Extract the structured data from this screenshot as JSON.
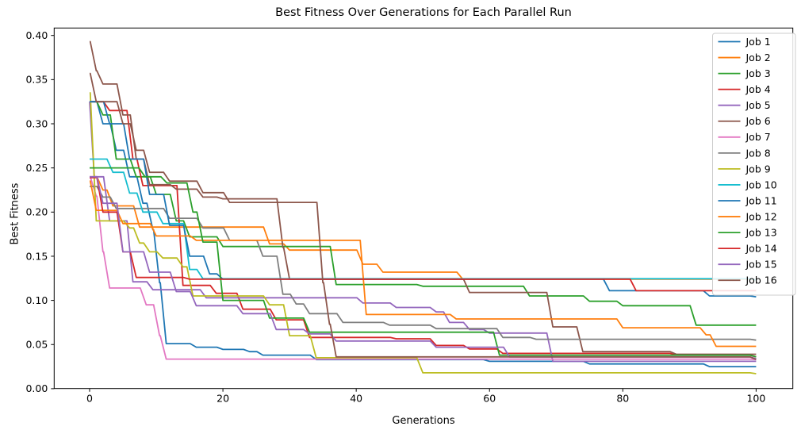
{
  "figure": {
    "title": "Best Fitness Over Generations for Each Parallel Run",
    "xlabel": "Generations",
    "ylabel": "Best Fitness"
  },
  "axes": {
    "x_ticks": [
      0,
      20,
      40,
      60,
      80,
      100
    ],
    "y_ticks": [
      "0.00",
      "0.05",
      "0.10",
      "0.15",
      "0.20",
      "0.25",
      "0.30",
      "0.35",
      "0.40"
    ],
    "background": "#ffffff",
    "spine_color": "#000000"
  },
  "chart_data": {
    "type": "line",
    "title": "Best Fitness Over Generations for Each Parallel Run",
    "xlabel": "Generations",
    "ylabel": "Best Fitness",
    "xlim": [
      -5,
      105
    ],
    "ylim": [
      0.0,
      0.41
    ],
    "grid": false,
    "legend_position": "upper right",
    "line_style": "step-decreasing",
    "series": [
      {
        "name": "Job 1",
        "color": "#1f77b4",
        "points": [
          [
            0,
            0.325
          ],
          [
            2,
            0.3
          ],
          [
            4,
            0.27
          ],
          [
            6,
            0.24
          ],
          [
            8,
            0.21
          ],
          [
            9.5,
            0.18
          ],
          [
            10.5,
            0.12
          ],
          [
            11.5,
            0.051
          ],
          [
            16,
            0.047
          ],
          [
            20,
            0.0445
          ],
          [
            24,
            0.042
          ],
          [
            26,
            0.038
          ],
          [
            34,
            0.033
          ],
          [
            60,
            0.031
          ],
          [
            75,
            0.028
          ],
          [
            93,
            0.025
          ],
          [
            100,
            0.025
          ]
        ]
      },
      {
        "name": "Job 2",
        "color": "#ff7f0e",
        "points": [
          [
            0,
            0.24
          ],
          [
            2,
            0.225
          ],
          [
            3.5,
            0.207
          ],
          [
            7.5,
            0.183
          ],
          [
            27,
            0.164
          ],
          [
            30,
            0.157
          ],
          [
            41,
            0.141
          ],
          [
            44,
            0.132
          ],
          [
            56,
            0.124
          ],
          [
            100,
            0.123
          ]
        ]
      },
      {
        "name": "Job 3",
        "color": "#2ca02c",
        "points": [
          [
            0,
            0.325
          ],
          [
            2,
            0.31
          ],
          [
            4,
            0.26
          ],
          [
            7,
            0.24
          ],
          [
            10,
            0.22
          ],
          [
            13,
            0.19
          ],
          [
            15,
            0.172
          ],
          [
            20,
            0.161
          ],
          [
            37,
            0.118
          ],
          [
            50,
            0.116
          ],
          [
            66,
            0.105
          ],
          [
            75,
            0.099
          ],
          [
            80,
            0.094
          ],
          [
            91,
            0.072
          ],
          [
            100,
            0.072
          ]
        ]
      },
      {
        "name": "Job 4",
        "color": "#d62728",
        "points": [
          [
            0,
            0.325
          ],
          [
            3,
            0.315
          ],
          [
            6.5,
            0.26
          ],
          [
            8,
            0.23
          ],
          [
            14,
            0.117
          ],
          [
            19,
            0.108
          ],
          [
            23,
            0.09
          ],
          [
            28,
            0.078
          ],
          [
            33,
            0.058
          ],
          [
            46,
            0.0565
          ],
          [
            52,
            0.049
          ],
          [
            57,
            0.045
          ],
          [
            62,
            0.04
          ],
          [
            88,
            0.038
          ],
          [
            100,
            0.036
          ]
        ]
      },
      {
        "name": "Job 5",
        "color": "#9467bd",
        "points": [
          [
            0,
            0.325
          ],
          [
            0.7,
            0.24
          ],
          [
            3,
            0.19
          ],
          [
            6.5,
            0.121
          ],
          [
            9.5,
            0.112
          ],
          [
            17.5,
            0.103
          ],
          [
            41,
            0.097
          ],
          [
            46,
            0.092
          ],
          [
            52,
            0.087
          ],
          [
            54,
            0.075
          ],
          [
            57,
            0.067
          ],
          [
            60,
            0.063
          ],
          [
            69.5,
            0.031
          ],
          [
            100,
            0.031
          ]
        ]
      },
      {
        "name": "Job 6",
        "color": "#8c564b",
        "points": [
          [
            0,
            0.393
          ],
          [
            1,
            0.36
          ],
          [
            2,
            0.345
          ],
          [
            5,
            0.31
          ],
          [
            7,
            0.26
          ],
          [
            9,
            0.231
          ],
          [
            13,
            0.226
          ],
          [
            17,
            0.217
          ],
          [
            20,
            0.215
          ],
          [
            29,
            0.16
          ],
          [
            30,
            0.124
          ],
          [
            57,
            0.109
          ],
          [
            69.5,
            0.07
          ],
          [
            74,
            0.042
          ],
          [
            88,
            0.039
          ],
          [
            100,
            0.039
          ]
        ]
      },
      {
        "name": "Job 7",
        "color": "#e377c2",
        "points": [
          [
            0,
            0.24
          ],
          [
            1,
            0.218
          ],
          [
            2,
            0.155
          ],
          [
            3,
            0.114
          ],
          [
            8.5,
            0.095
          ],
          [
            10.5,
            0.06
          ],
          [
            11.5,
            0.0335
          ],
          [
            100,
            0.033
          ]
        ]
      },
      {
        "name": "Job 8",
        "color": "#7f7f7f",
        "points": [
          [
            0,
            0.229
          ],
          [
            2,
            0.217
          ],
          [
            4,
            0.204
          ],
          [
            12,
            0.193
          ],
          [
            17,
            0.182
          ],
          [
            21,
            0.168
          ],
          [
            26,
            0.15
          ],
          [
            29,
            0.107
          ],
          [
            31,
            0.096
          ],
          [
            33,
            0.085
          ],
          [
            38,
            0.075
          ],
          [
            45,
            0.072
          ],
          [
            52,
            0.068
          ],
          [
            62,
            0.058
          ],
          [
            67,
            0.056
          ],
          [
            100,
            0.055
          ]
        ]
      },
      {
        "name": "Job 9",
        "color": "#bcbd22",
        "points": [
          [
            0,
            0.335
          ],
          [
            1,
            0.19
          ],
          [
            6,
            0.182
          ],
          [
            7.5,
            0.165
          ],
          [
            9,
            0.155
          ],
          [
            11,
            0.148
          ],
          [
            14,
            0.138
          ],
          [
            15.5,
            0.105
          ],
          [
            27,
            0.095
          ],
          [
            30,
            0.06
          ],
          [
            34,
            0.035
          ],
          [
            50,
            0.018
          ],
          [
            100,
            0.017
          ]
        ]
      },
      {
        "name": "Job 10",
        "color": "#17becf",
        "points": [
          [
            0,
            0.26
          ],
          [
            3.5,
            0.245
          ],
          [
            6,
            0.2215
          ],
          [
            8,
            0.2
          ],
          [
            11,
            0.187
          ],
          [
            15,
            0.135
          ],
          [
            17,
            0.1245
          ],
          [
            100,
            0.123
          ]
        ]
      },
      {
        "name": "Job 11",
        "color": "#1f77b4",
        "points": [
          [
            0,
            0.325
          ],
          [
            3,
            0.3
          ],
          [
            6,
            0.26
          ],
          [
            9,
            0.22
          ],
          [
            12,
            0.185
          ],
          [
            15,
            0.15
          ],
          [
            18,
            0.13
          ],
          [
            20,
            0.124
          ],
          [
            78,
            0.111
          ],
          [
            93,
            0.105
          ],
          [
            100,
            0.104
          ]
        ]
      },
      {
        "name": "Job 12",
        "color": "#ff7f0e",
        "points": [
          [
            0,
            0.235
          ],
          [
            1,
            0.202
          ],
          [
            5,
            0.187
          ],
          [
            10,
            0.173
          ],
          [
            16,
            0.168
          ],
          [
            41.5,
            0.084
          ],
          [
            55,
            0.079
          ],
          [
            80,
            0.069
          ],
          [
            92.5,
            0.061
          ],
          [
            94,
            0.048
          ],
          [
            100,
            0.048
          ]
        ]
      },
      {
        "name": "Job 13",
        "color": "#2ca02c",
        "points": [
          [
            0,
            0.25
          ],
          [
            8.3,
            0.24
          ],
          [
            11.6,
            0.233
          ],
          [
            15.5,
            0.2
          ],
          [
            17,
            0.166
          ],
          [
            20,
            0.1
          ],
          [
            27,
            0.08
          ],
          [
            33,
            0.064
          ],
          [
            61.5,
            0.038
          ],
          [
            100,
            0.036
          ]
        ]
      },
      {
        "name": "Job 14",
        "color": "#d62728",
        "points": [
          [
            0,
            0.239
          ],
          [
            2,
            0.2
          ],
          [
            5,
            0.155
          ],
          [
            7,
            0.126
          ],
          [
            15,
            0.124
          ],
          [
            82,
            0.111
          ],
          [
            100,
            0.111
          ]
        ]
      },
      {
        "name": "Job 15",
        "color": "#9467bd",
        "points": [
          [
            0,
            0.24
          ],
          [
            2,
            0.21
          ],
          [
            5,
            0.155
          ],
          [
            9,
            0.132
          ],
          [
            13,
            0.11
          ],
          [
            16,
            0.094
          ],
          [
            23,
            0.085
          ],
          [
            28,
            0.067
          ],
          [
            33,
            0.062
          ],
          [
            37,
            0.054
          ],
          [
            52,
            0.047
          ],
          [
            63,
            0.036
          ],
          [
            100,
            0.034
          ]
        ]
      },
      {
        "name": "Job 16",
        "color": "#8c564b",
        "points": [
          [
            0,
            0.357
          ],
          [
            1,
            0.325
          ],
          [
            5,
            0.3
          ],
          [
            7,
            0.27
          ],
          [
            9,
            0.245
          ],
          [
            12,
            0.235
          ],
          [
            17,
            0.222
          ],
          [
            21,
            0.211
          ],
          [
            35,
            0.12
          ],
          [
            36,
            0.073
          ],
          [
            37,
            0.036
          ],
          [
            100,
            0.033
          ]
        ]
      }
    ]
  },
  "legend": {
    "border_color": "#cccccc",
    "background": "#ffffff"
  }
}
